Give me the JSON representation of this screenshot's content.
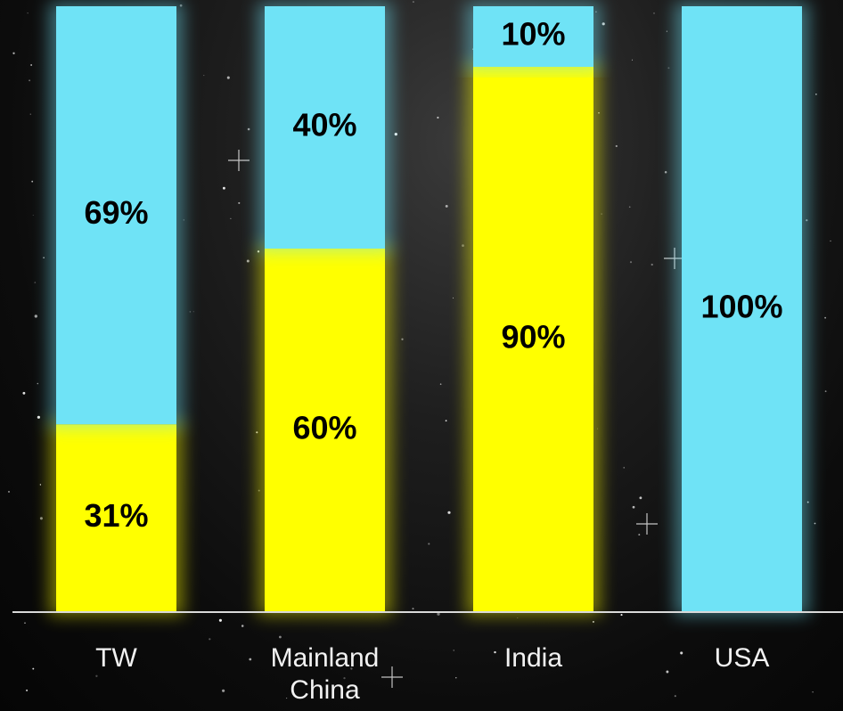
{
  "chart_data": {
    "type": "bar",
    "stacked": true,
    "categories": [
      "TW",
      "Mainland China",
      "India",
      "USA"
    ],
    "series": [
      {
        "color": "#FFFF00",
        "values": [
          31,
          60,
          90,
          0
        ]
      },
      {
        "color": "#6FE3F6",
        "values": [
          69,
          40,
          10,
          100
        ]
      }
    ],
    "data_labels": [
      [
        "31%",
        "60%",
        "90%",
        ""
      ],
      [
        "69%",
        "40%",
        "10%",
        "100%"
      ]
    ],
    "ylim": [
      0,
      100
    ],
    "grid": false,
    "legend": "none"
  },
  "colors": {
    "background": "#000000",
    "axis": "#d9d9d9",
    "label_text": "#000000",
    "category_text": "#f2f2f2"
  }
}
